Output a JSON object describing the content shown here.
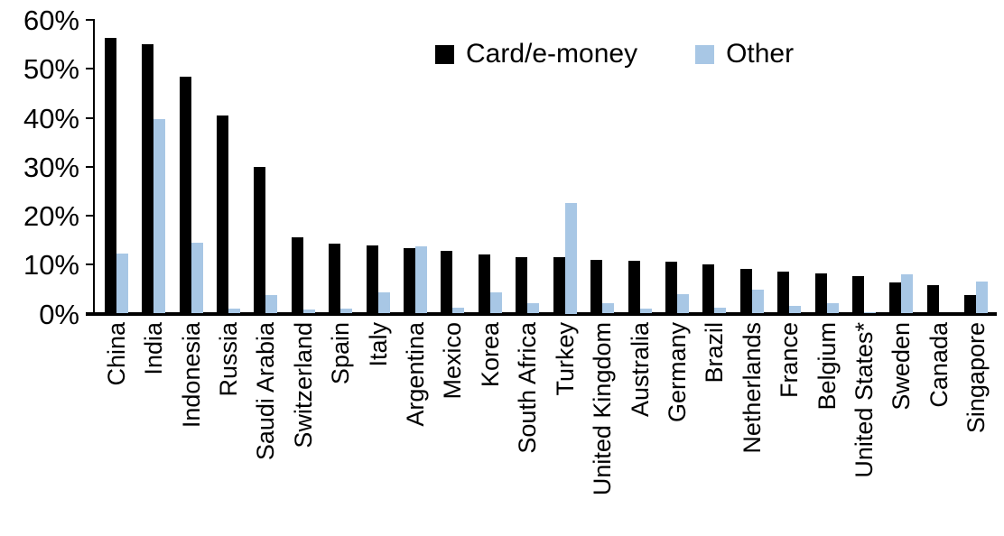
{
  "chart_data": {
    "type": "bar",
    "title": "",
    "xlabel": "",
    "ylabel": "",
    "ylim": [
      0,
      60
    ],
    "ytick_values": [
      0,
      10,
      20,
      30,
      40,
      50,
      60
    ],
    "ytick_labels": [
      "0%",
      "10%",
      "20%",
      "30%",
      "40%",
      "50%",
      "60%"
    ],
    "grid": false,
    "legend_position": "top-center",
    "categories": [
      "China",
      "India",
      "Indonesia",
      "Russia",
      "Saudi Arabia",
      "Switzerland",
      "Spain",
      "Italy",
      "Argentina",
      "Mexico",
      "Korea",
      "South Africa",
      "Turkey",
      "United Kingdom",
      "Australia",
      "Germany",
      "Brazil",
      "Netherlands",
      "France",
      "Belgium",
      "United States*",
      "Sweden",
      "Canada",
      "Singapore"
    ],
    "series": [
      {
        "name": "Card/e-money",
        "color": "#000000",
        "values": [
          56.3,
          55.0,
          48.3,
          40.5,
          29.9,
          15.6,
          14.2,
          14.0,
          13.3,
          12.9,
          12.1,
          11.6,
          11.6,
          11.0,
          10.8,
          10.6,
          10.0,
          9.2,
          8.6,
          8.2,
          7.7,
          6.4,
          5.8,
          3.7
        ]
      },
      {
        "name": "Other",
        "color": "#A8C7E5",
        "values": [
          12.3,
          39.8,
          14.5,
          1.0,
          3.8,
          0.8,
          1.0,
          4.4,
          13.8,
          1.2,
          4.4,
          2.2,
          22.5,
          2.2,
          1.0,
          3.9,
          1.2,
          4.9,
          1.5,
          2.1,
          0.3,
          8.1,
          0,
          6.6
        ]
      }
    ]
  },
  "legend": {
    "card_label": "Card/e-money",
    "other_label": "Other"
  }
}
